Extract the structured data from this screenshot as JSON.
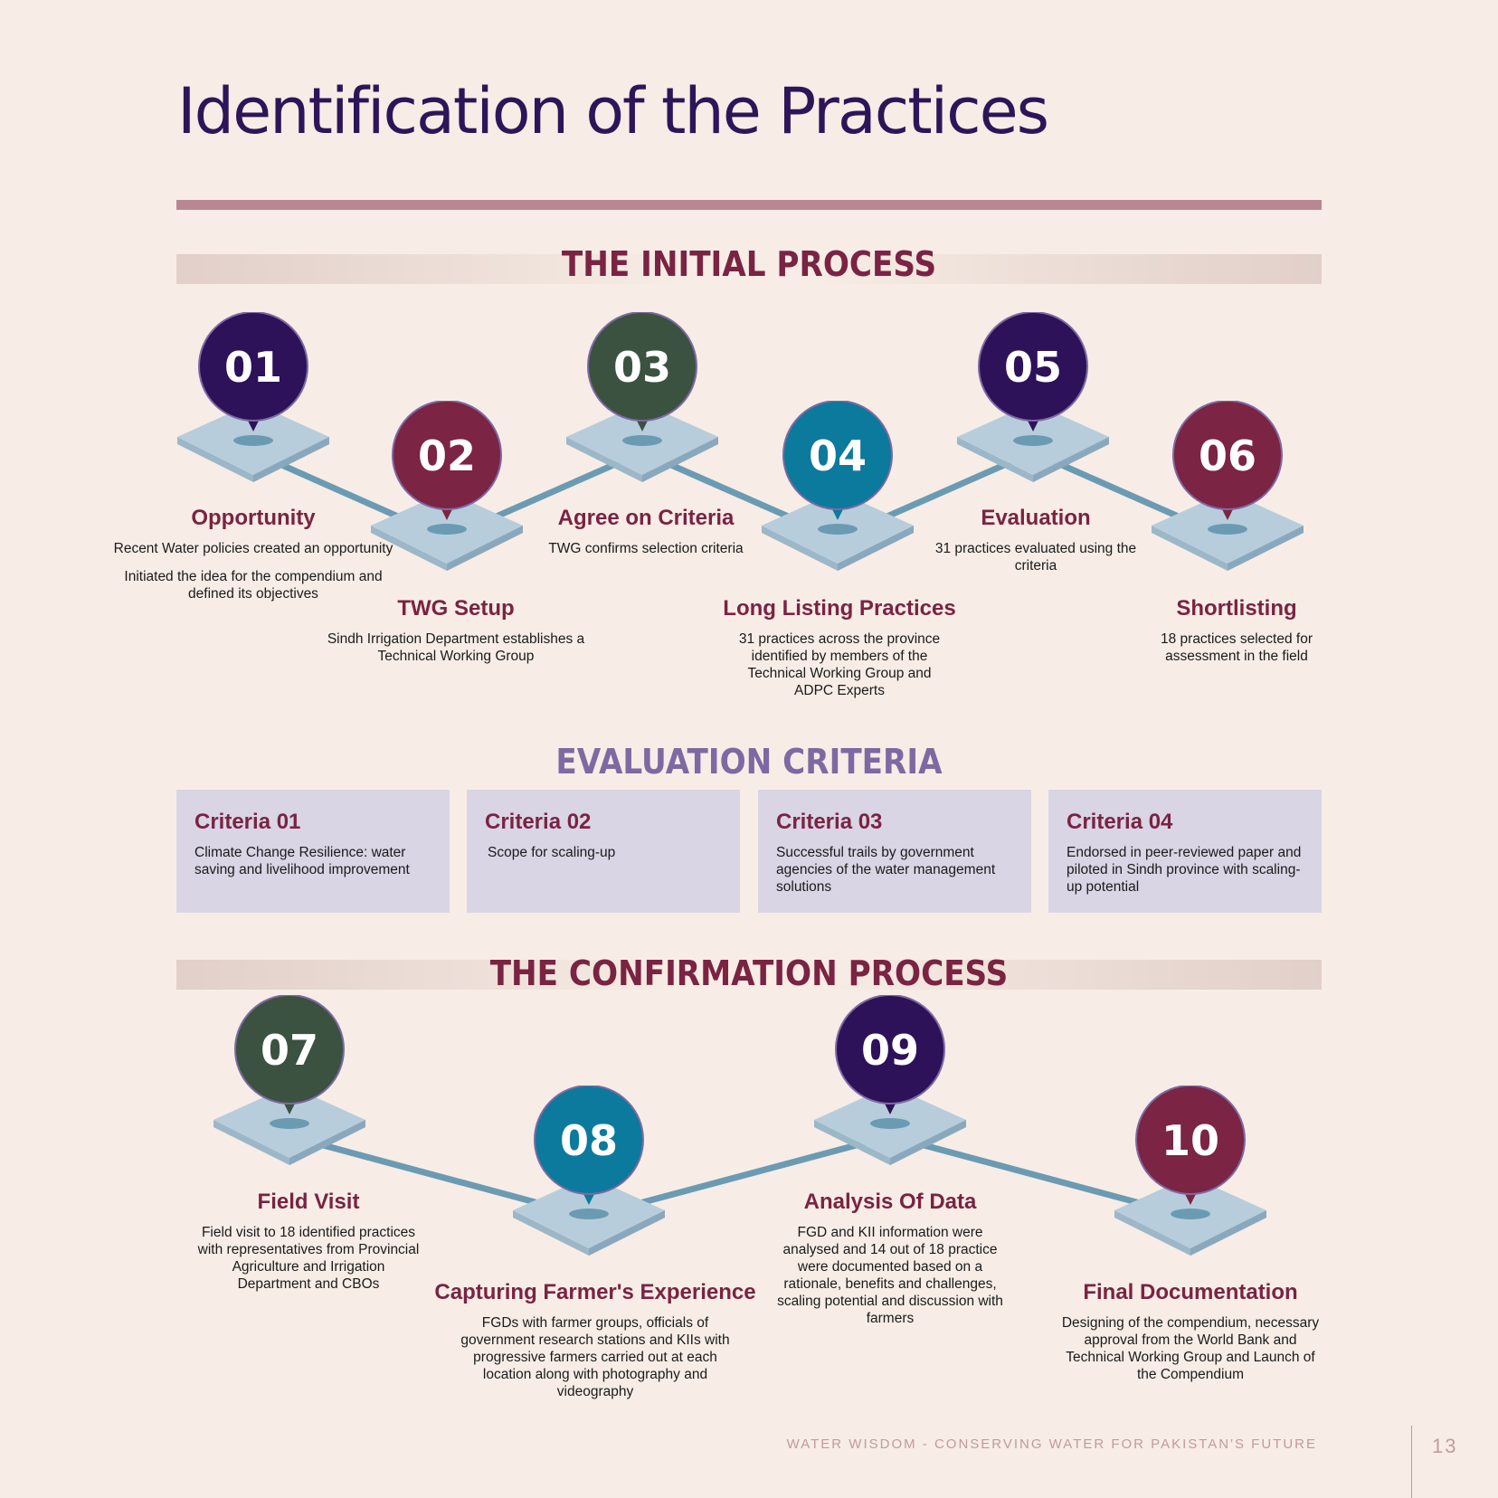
{
  "title": "Identification of the Practices",
  "sections": {
    "initial": "THE INITIAL PROCESS",
    "evaluation": "EVALUATION CRITERIA",
    "confirmation": "THE CONFIRMATION PROCESS"
  },
  "steps": [
    {
      "num": "01",
      "title": "Opportunity",
      "desc": [
        "Recent Water policies created an opportunity",
        "Initiated the idea for the compendium and defined its objectives"
      ],
      "color": "#2d1259"
    },
    {
      "num": "02",
      "title": "TWG Setup",
      "desc": [
        "Sindh Irrigation Department establishes a Technical Working Group"
      ],
      "color": "#7b2444"
    },
    {
      "num": "03",
      "title": "Agree on Criteria",
      "desc": [
        "TWG confirms selection criteria"
      ],
      "color": "#3b5240"
    },
    {
      "num": "04",
      "title": "Long Listing Practices",
      "desc": [
        "31 practices across the province identified by members of the Technical Working Group and ADPC Experts"
      ],
      "color": "#0b7a9c"
    },
    {
      "num": "05",
      "title": "Evaluation",
      "desc": [
        "31 practices evaluated using the criteria"
      ],
      "color": "#2d1259"
    },
    {
      "num": "06",
      "title": "Shortlisting",
      "desc": [
        "18 practices selected for assessment in the field"
      ],
      "color": "#7b2444"
    },
    {
      "num": "07",
      "title": "Field Visit",
      "desc": [
        "Field visit to 18 identified practices with representatives from Provincial Agriculture and Irrigation Department and CBOs"
      ],
      "color": "#3b5240"
    },
    {
      "num": "08",
      "title": "Capturing Farmer's Experience",
      "desc": [
        "FGDs with farmer groups, officials of government research stations and KIIs with progressive farmers carried out at each location along with photography and videography"
      ],
      "color": "#0b7a9c"
    },
    {
      "num": "09",
      "title": "Analysis Of Data",
      "desc": [
        "FGD and KII information were analysed and 14 out of 18 practice were documented based on a rationale, benefits and challenges, scaling potential and discussion with farmers"
      ],
      "color": "#2d1259"
    },
    {
      "num": "10",
      "title": "Final Documentation",
      "desc": [
        "Designing of the compendium, necessary approval from the World Bank and Technical Working Group and Launch of the Compendium"
      ],
      "color": "#7b2444"
    }
  ],
  "criteria": [
    {
      "title": "Criteria 01",
      "desc": "Climate Change Resilience: water saving and livelihood improvement"
    },
    {
      "title": "Criteria 02",
      "desc": "Scope for scaling-up"
    },
    {
      "title": "Criteria 03",
      "desc": "Successful trails by government agencies of the water management solutions"
    },
    {
      "title": "Criteria 04",
      "desc": "Endorsed in peer-reviewed paper and piloted in Sindh province with scaling-up potential"
    }
  ],
  "footer": {
    "text": "WATER WISDOM - CONSERVING WATER FOR PAKISTAN'S FUTURE",
    "page": "13"
  }
}
